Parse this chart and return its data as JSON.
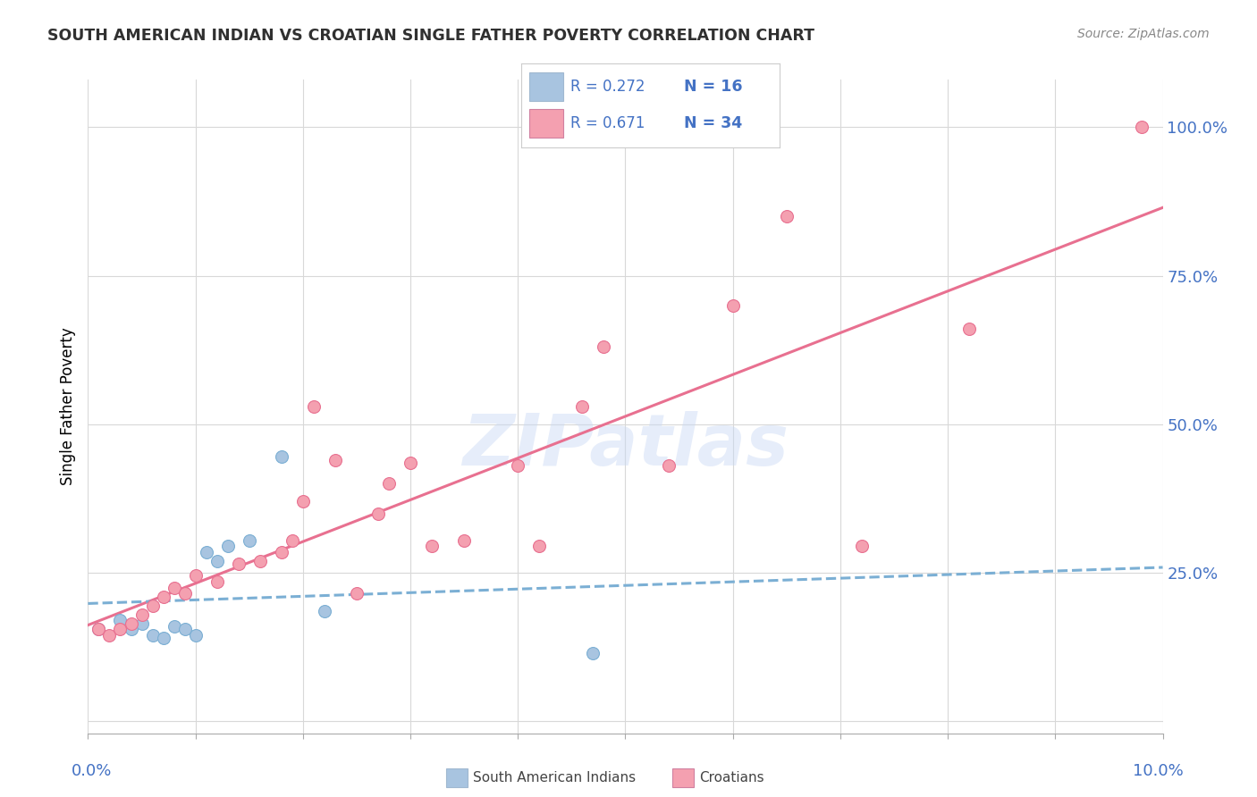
{
  "title": "SOUTH AMERICAN INDIAN VS CROATIAN SINGLE FATHER POVERTY CORRELATION CHART",
  "source": "Source: ZipAtlas.com",
  "ylabel": "Single Father Poverty",
  "ytick_labels": [
    "",
    "25.0%",
    "50.0%",
    "75.0%",
    "100.0%"
  ],
  "ytick_positions": [
    0.0,
    0.25,
    0.5,
    0.75,
    1.0
  ],
  "xrange": [
    0.0,
    0.1
  ],
  "yrange": [
    -0.02,
    1.08
  ],
  "color_blue": "#a8c4e0",
  "color_pink": "#f4a0b0",
  "color_blue_line": "#7bafd4",
  "color_pink_line": "#e87090",
  "watermark": "ZIPatlas",
  "sai_x": [
    0.001,
    0.003,
    0.004,
    0.005,
    0.006,
    0.007,
    0.008,
    0.009,
    0.01,
    0.011,
    0.012,
    0.013,
    0.015,
    0.018,
    0.022,
    0.047
  ],
  "sai_y": [
    0.155,
    0.17,
    0.155,
    0.165,
    0.145,
    0.14,
    0.16,
    0.155,
    0.145,
    0.285,
    0.27,
    0.295,
    0.305,
    0.445,
    0.185,
    0.115
  ],
  "cro_x": [
    0.001,
    0.002,
    0.003,
    0.004,
    0.005,
    0.006,
    0.007,
    0.008,
    0.009,
    0.01,
    0.012,
    0.014,
    0.016,
    0.018,
    0.019,
    0.02,
    0.021,
    0.023,
    0.025,
    0.027,
    0.028,
    0.03,
    0.032,
    0.035,
    0.04,
    0.042,
    0.046,
    0.048,
    0.054,
    0.06,
    0.065,
    0.072,
    0.082,
    0.098
  ],
  "cro_y": [
    0.155,
    0.145,
    0.155,
    0.165,
    0.18,
    0.195,
    0.21,
    0.225,
    0.215,
    0.245,
    0.235,
    0.265,
    0.27,
    0.285,
    0.305,
    0.37,
    0.53,
    0.44,
    0.215,
    0.35,
    0.4,
    0.435,
    0.295,
    0.305,
    0.43,
    0.295,
    0.53,
    0.63,
    0.43,
    0.7,
    0.85,
    0.295,
    0.66,
    1.0
  ]
}
